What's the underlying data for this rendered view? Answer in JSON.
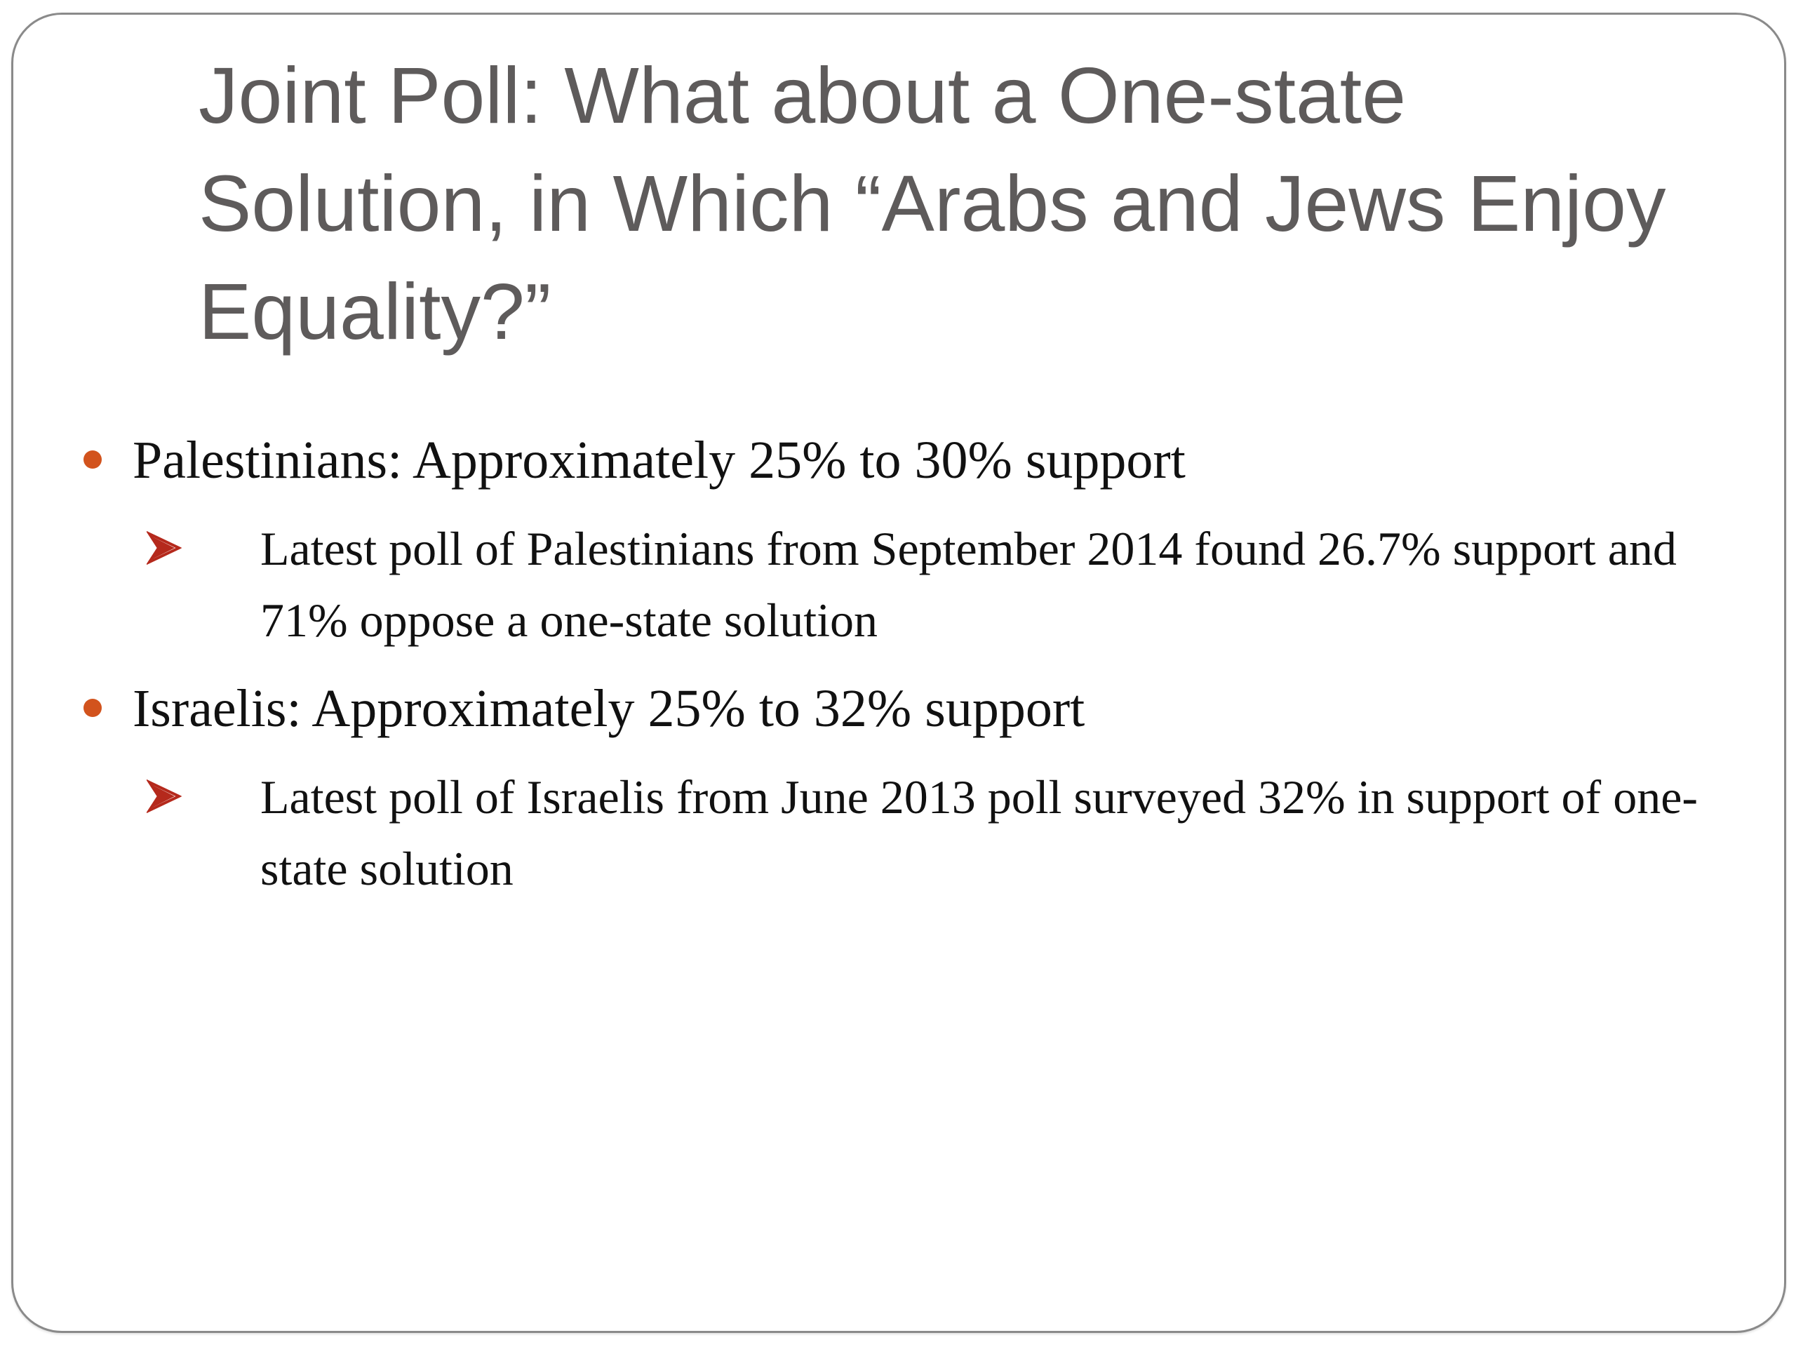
{
  "slide": {
    "title": "Joint Poll: What about a One-state Solution, in Which “Arabs and Jews Enjoy Equality?”",
    "bullets": [
      {
        "text": "Palestinians: Approximately 25% to 30% support",
        "sub": "Latest poll of Palestinians from September 2014 found 26.7% support and 71% oppose a one-state solution"
      },
      {
        "text": "Israelis: Approximately 25% to 32% support",
        "sub": "Latest poll of Israelis from June 2013 poll surveyed 32% in support of one-state solution"
      }
    ]
  },
  "colors": {
    "bullet_dot": "#d2531d",
    "sub_arrow": "#b5291c",
    "title_text": "#5e5b5b",
    "body_text": "#111111",
    "frame_border": "#8a8a8a"
  },
  "icons": {
    "level1_marker": "dot-bullet-icon",
    "level2_marker": "arrowhead-bullet-icon"
  }
}
